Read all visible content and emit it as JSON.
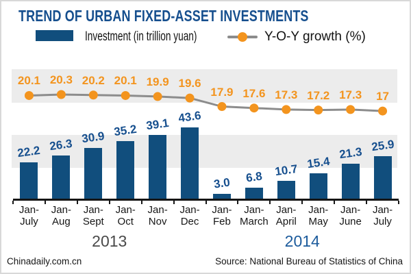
{
  "title": "TREND OF URBAN FIXED-ASSET INVESTMENTS",
  "legend": {
    "bar_label": "Investment (in trillion yuan)",
    "line_label": "Y-O-Y growth (%)"
  },
  "colors": {
    "title": "#164f8e",
    "bar": "#114e7d",
    "bar_label": "#164f8e",
    "line": "#8c8c8c",
    "dot": "#f3941e",
    "line_label": "#f3941e",
    "band": "#ececec",
    "year_2013": "#4a4a4a",
    "year_2014": "#1c5b9c"
  },
  "chart_data": {
    "type": "bar",
    "subtype": "bar+line combo",
    "title": "TREND OF URBAN FIXED-ASSET INVESTMENTS",
    "xlabel": "",
    "ylabel": "",
    "legend_position": "top",
    "grid": "two horizontal light-gray bands",
    "categories": [
      "Jan-July",
      "Jan-Aug",
      "Jan-Sept",
      "Jan-Oct",
      "Jan-Nov",
      "Jan-Dec",
      "Jan-Feb",
      "Jan-March",
      "Jan-April",
      "Jan-May",
      "Jan-June",
      "Jan-July"
    ],
    "series": [
      {
        "name": "Investment (in trillion yuan)",
        "type": "bar",
        "values": [
          22.2,
          26.3,
          30.9,
          35.2,
          39.1,
          43.6,
          3.0,
          6.8,
          10.7,
          15.4,
          21.3,
          25.9
        ],
        "labels": [
          "22.2",
          "26.3",
          "30.9",
          "35.2",
          "39.1",
          "43.6",
          "3.0",
          "6.8",
          "10.7",
          "15.4",
          "21.3",
          "25.9"
        ]
      },
      {
        "name": "Y-O-Y growth (%)",
        "type": "line",
        "values": [
          20.1,
          20.3,
          20.2,
          20.1,
          19.9,
          19.6,
          17.9,
          17.6,
          17.3,
          17.2,
          17.3,
          17
        ],
        "labels": [
          "20.1",
          "20.3",
          "20.2",
          "20.1",
          "19.9",
          "19.6",
          "17.9",
          "17.6",
          "17.3",
          "17.2",
          "17.3",
          "17"
        ]
      }
    ],
    "year_groups": [
      {
        "label": "2013",
        "span": [
          0,
          5
        ]
      },
      {
        "label": "2014",
        "span": [
          6,
          11
        ]
      }
    ]
  },
  "footer": {
    "left": "Chinadaily.com.cn",
    "right": "Source: National Bureau of Statistics of China"
  }
}
